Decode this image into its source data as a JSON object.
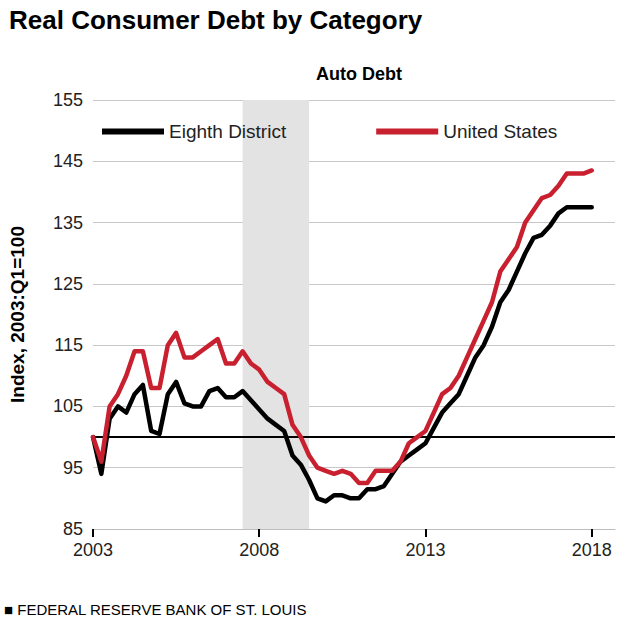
{
  "chart_data": {
    "type": "line",
    "title": "Real Consumer Debt by Category",
    "subtitle": "Auto Debt",
    "y_label": "Index, 2003:Q1=100",
    "source": "■ FEDERAL RESERVE BANK OF ST. LOUIS",
    "x": [
      2003,
      2003.25,
      2003.5,
      2003.75,
      2004,
      2004.25,
      2004.5,
      2004.75,
      2005,
      2005.25,
      2005.5,
      2005.75,
      2006,
      2006.25,
      2006.5,
      2006.75,
      2007,
      2007.25,
      2007.5,
      2007.75,
      2008,
      2008.25,
      2008.5,
      2008.75,
      2009,
      2009.25,
      2009.5,
      2009.75,
      2010,
      2010.25,
      2010.5,
      2010.75,
      2011,
      2011.25,
      2011.5,
      2011.75,
      2012,
      2012.25,
      2012.5,
      2012.75,
      2013,
      2013.25,
      2013.5,
      2013.75,
      2014,
      2014.25,
      2014.5,
      2014.75,
      2015,
      2015.25,
      2015.5,
      2015.75,
      2016,
      2016.25,
      2016.5,
      2016.75,
      2017,
      2017.25,
      2017.5,
      2017.75,
      2018
    ],
    "xlim": [
      2003,
      2018.7
    ],
    "xticks": [
      2003,
      2008,
      2013,
      2018
    ],
    "ylim": [
      85,
      155
    ],
    "yticks": [
      85,
      95,
      105,
      115,
      125,
      135,
      145,
      155
    ],
    "grid": true,
    "legend": "top-left",
    "recession": [
      2007.5,
      2009.5
    ],
    "reference_line": 100,
    "series": [
      {
        "name": "Eighth District",
        "color": "#000000",
        "line_style": "solid",
        "values": [
          100,
          94,
          103,
          105,
          104,
          107,
          108.5,
          101,
          100.5,
          107,
          109,
          105.5,
          105,
          105,
          107.5,
          108,
          106.5,
          106.5,
          107.5,
          106,
          104.5,
          103,
          102,
          101,
          97,
          95.5,
          93,
          90,
          89.5,
          90.5,
          90.5,
          90,
          90,
          91.5,
          91.5,
          92,
          94,
          96,
          97,
          98,
          99,
          101.5,
          104,
          105.5,
          107,
          110,
          113,
          115,
          118,
          122,
          124,
          127,
          130,
          132.5,
          133,
          134.5,
          136.5,
          137.5,
          137.5,
          137.5,
          137.5
        ]
      },
      {
        "name": "United States",
        "color": "#c8202f",
        "line_style": "solid",
        "values": [
          100,
          96,
          105,
          107,
          110,
          114,
          114,
          108,
          108,
          115,
          117,
          113,
          113,
          114,
          115,
          116,
          112,
          112,
          114,
          112,
          111,
          109,
          108,
          107,
          102,
          100,
          97,
          95,
          94.5,
          94,
          94.5,
          94,
          92.5,
          92.5,
          94.5,
          94.5,
          94.5,
          96,
          99,
          100,
          101,
          104,
          107,
          108,
          110,
          113,
          116,
          119,
          122,
          127,
          129,
          131,
          135,
          137,
          139,
          139.5,
          141,
          143,
          143,
          143,
          143.5
        ]
      }
    ]
  }
}
